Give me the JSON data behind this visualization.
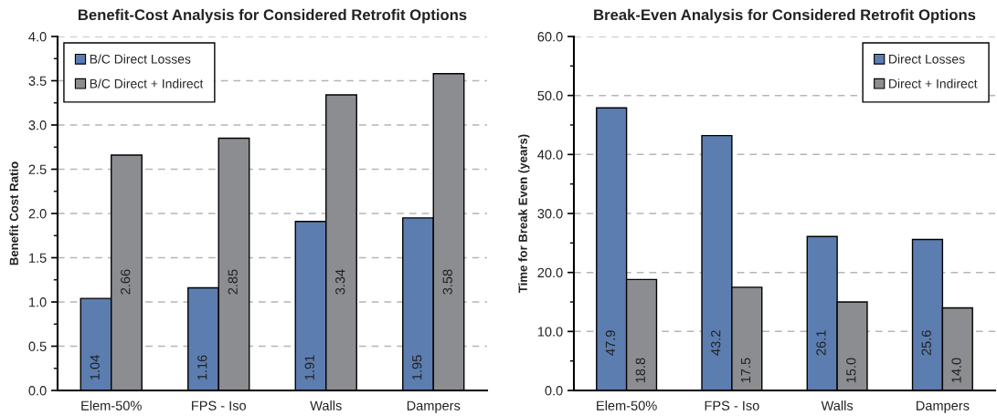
{
  "chart_data": [
    {
      "type": "bar",
      "title": "Benefit-Cost Analysis for Considered Retrofit Options",
      "ylabel": "Benefit Cost Ratio",
      "categories": [
        "Elem-50%",
        "FPS - Iso",
        "Walls",
        "Dampers"
      ],
      "series": [
        {
          "name": "B/C Direct Losses",
          "color": "#5b7db0",
          "values": [
            1.04,
            1.16,
            1.91,
            1.95
          ],
          "value_labels": [
            "1.04",
            "1.16",
            "1.91",
            "1.95"
          ]
        },
        {
          "name": "B/C Direct + Indirect",
          "color": "#8c8d91",
          "values": [
            2.66,
            2.85,
            3.34,
            3.58
          ],
          "value_labels": [
            "2.66",
            "2.85",
            "3.34",
            "3.58"
          ]
        }
      ],
      "ylim": [
        0,
        4
      ],
      "yticks": [
        {
          "value": 0,
          "label": "0.0"
        },
        {
          "value": 0.25,
          "label": null
        },
        {
          "value": 0.5,
          "label": "0.5"
        },
        {
          "value": 0.75,
          "label": null
        },
        {
          "value": 1,
          "label": "1.0"
        },
        {
          "value": 1.25,
          "label": null
        },
        {
          "value": 1.5,
          "label": "1.5"
        },
        {
          "value": 1.75,
          "label": null
        },
        {
          "value": 2,
          "label": "2.0"
        },
        {
          "value": 2.25,
          "label": null
        },
        {
          "value": 2.5,
          "label": "2.5"
        },
        {
          "value": 2.75,
          "label": null
        },
        {
          "value": 3,
          "label": "3.0"
        },
        {
          "value": 3.25,
          "label": null
        },
        {
          "value": 3.5,
          "label": "3.5"
        },
        {
          "value": 3.75,
          "label": null
        },
        {
          "value": 4,
          "label": "4.0"
        }
      ],
      "grid": "y",
      "legend": "top left"
    },
    {
      "type": "bar",
      "title": "Break-Even Analysis for Considered Retrofit Options",
      "ylabel": "Time for Break Even (years)",
      "categories": [
        "Elem-50%",
        "FPS - Iso",
        "Walls",
        "Dampers"
      ],
      "series": [
        {
          "name": "Direct Losses",
          "color": "#5b7db0",
          "values": [
            47.9,
            43.2,
            26.1,
            25.6
          ],
          "value_labels": [
            "47.9",
            "43.2",
            "26.1",
            "25.6"
          ]
        },
        {
          "name": "Direct + Indirect",
          "color": "#8c8d91",
          "values": [
            18.8,
            17.5,
            15.0,
            14.0
          ],
          "value_labels": [
            "18.8",
            "17.5",
            "15.0",
            "14.0"
          ]
        }
      ],
      "ylim": [
        0,
        60
      ],
      "yticks": [
        {
          "value": 0,
          "label": "0.0"
        },
        {
          "value": 5,
          "label": null
        },
        {
          "value": 10,
          "label": "10.0"
        },
        {
          "value": 15,
          "label": null
        },
        {
          "value": 20,
          "label": "20.0"
        },
        {
          "value": 25,
          "label": null
        },
        {
          "value": 30,
          "label": "30.0"
        },
        {
          "value": 35,
          "label": null
        },
        {
          "value": 40,
          "label": "40.0"
        },
        {
          "value": 45,
          "label": null
        },
        {
          "value": 50,
          "label": "50.0"
        },
        {
          "value": 55,
          "label": null
        },
        {
          "value": 60,
          "label": "60.0"
        }
      ],
      "grid": "y",
      "legend": "top right"
    }
  ]
}
